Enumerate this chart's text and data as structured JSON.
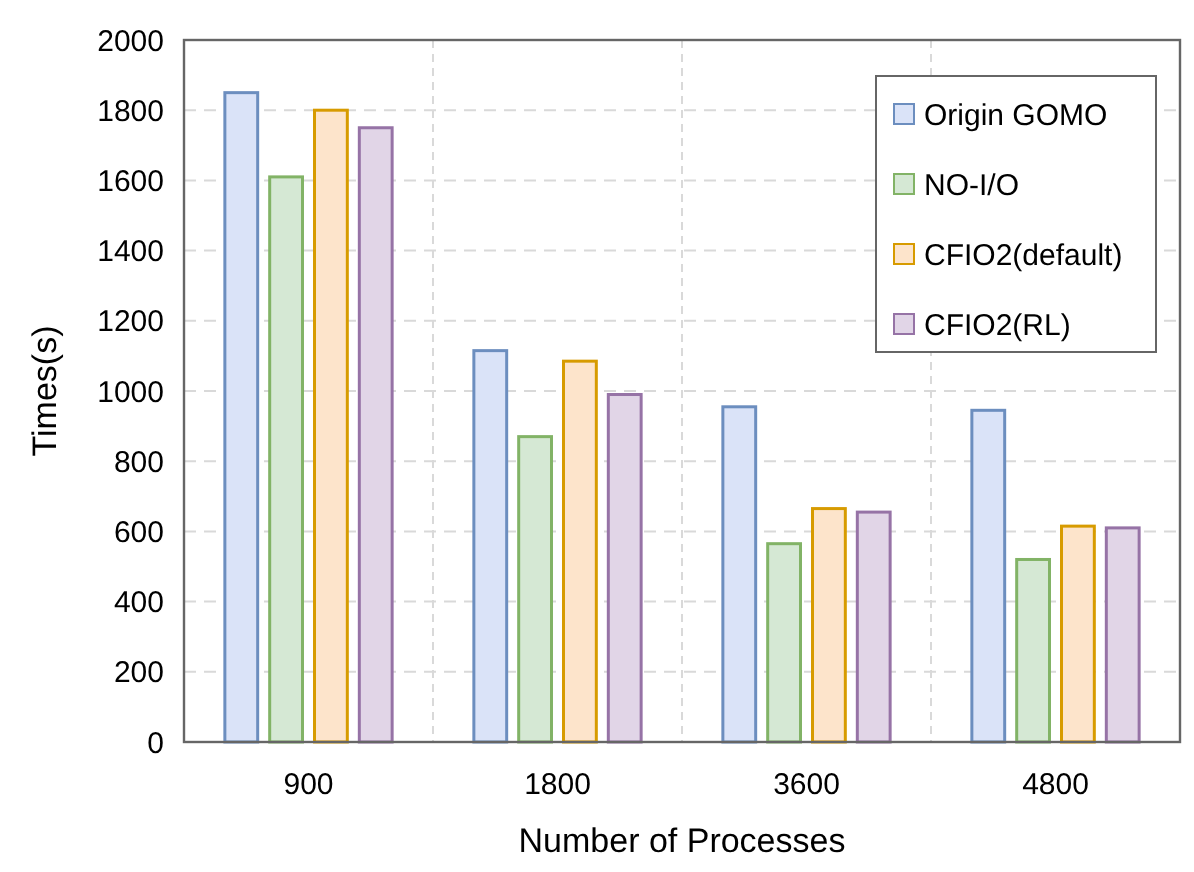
{
  "chart_data": {
    "type": "bar",
    "xlabel": "Number of Processes",
    "ylabel": "Times(s)",
    "categories": [
      "900",
      "1800",
      "3600",
      "4800"
    ],
    "series": [
      {
        "name": "Origin GOMO",
        "color": "#dae3f8",
        "values": [
          1850,
          1115,
          955,
          945
        ]
      },
      {
        "name": "NO-I/O",
        "color": "#d5e8d4",
        "values": [
          1610,
          870,
          565,
          520
        ]
      },
      {
        "name": "CFIO2(default)",
        "color": "#fde4cb",
        "values": [
          1800,
          1085,
          665,
          615
        ]
      },
      {
        "name": "CFIO2(RL)",
        "color": "#e1d5e7",
        "values": [
          1750,
          990,
          655,
          610
        ]
      }
    ],
    "ylim": [
      0,
      2000
    ],
    "yticks": [
      0,
      200,
      400,
      600,
      800,
      1000,
      1200,
      1400,
      1600,
      1800,
      2000
    ],
    "grid": true,
    "legend": "top right"
  }
}
